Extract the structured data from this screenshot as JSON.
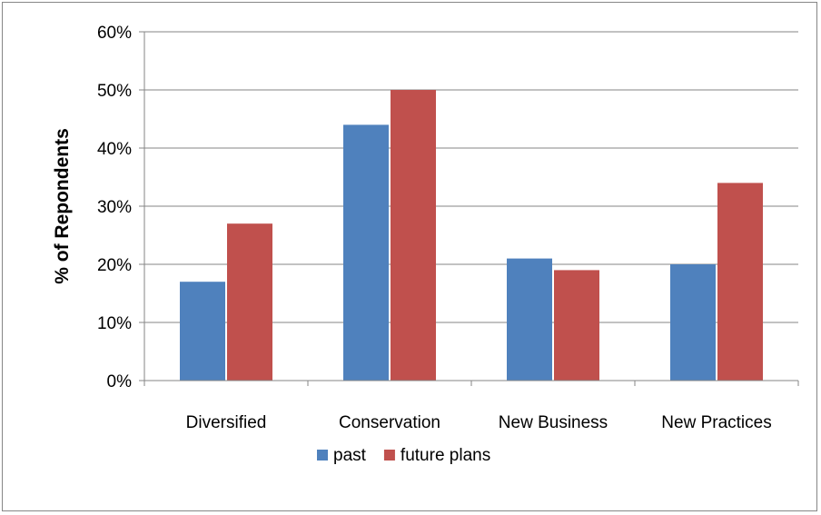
{
  "chart_data": {
    "type": "bar",
    "title": "",
    "xlabel": "",
    "ylabel": "% of Repondents",
    "categories": [
      "Diversified",
      "Conservation",
      "New Business",
      "New Practices"
    ],
    "series": [
      {
        "name": "past",
        "color": "#4F81BD",
        "values": [
          17,
          44,
          21,
          20
        ]
      },
      {
        "name": "future plans",
        "color": "#C0504D",
        "values": [
          27,
          50,
          19,
          34
        ]
      }
    ],
    "ylim": [
      0,
      60
    ],
    "yticks": [
      0,
      10,
      20,
      30,
      40,
      50,
      60
    ],
    "ytick_labels": [
      "0%",
      "10%",
      "20%",
      "30%",
      "40%",
      "50%",
      "60%"
    ],
    "grid": true,
    "legend_position": "bottom"
  }
}
